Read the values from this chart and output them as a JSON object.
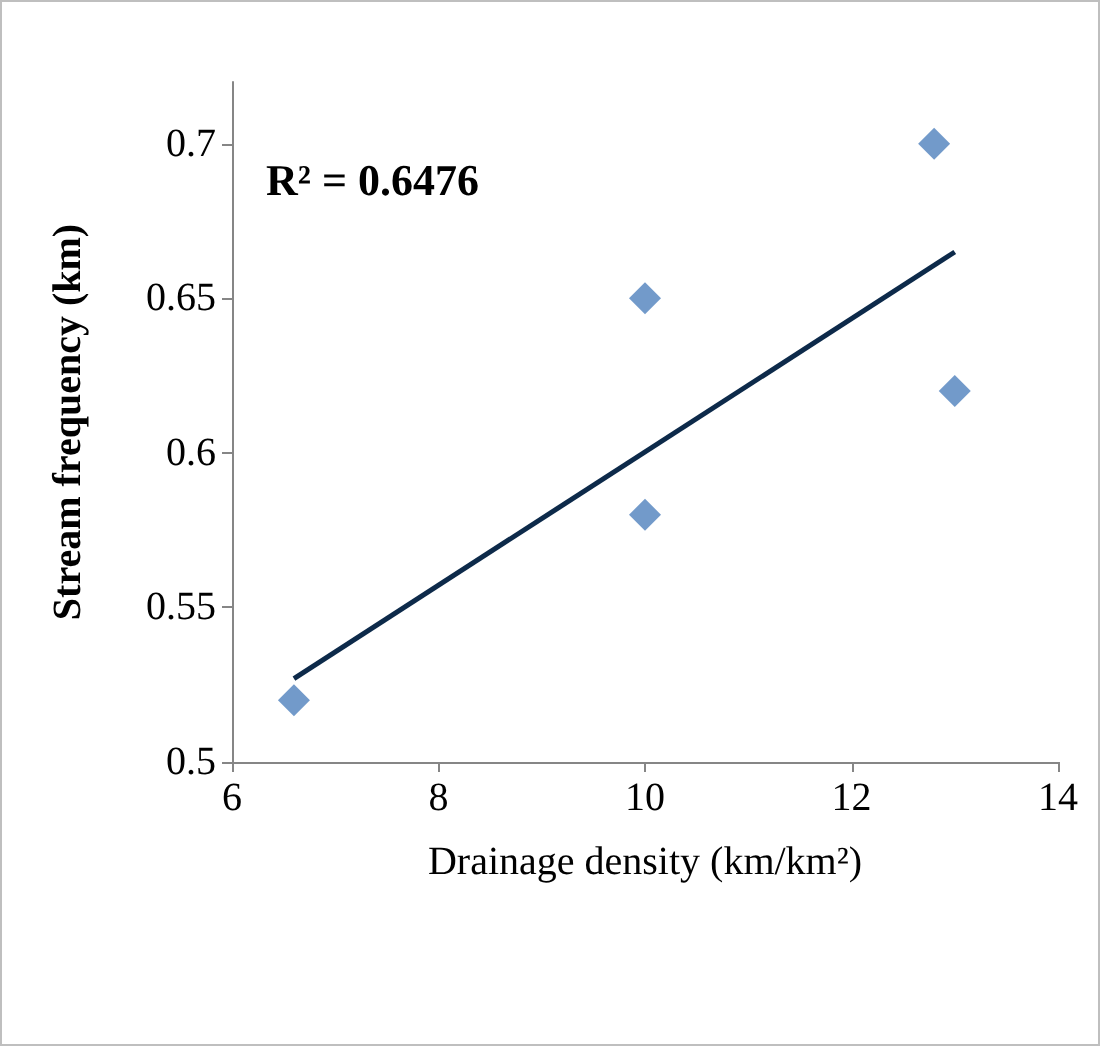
{
  "chart_data": {
    "type": "scatter",
    "xlabel": "Drainage density (km/km²)",
    "ylabel": "Stream frequency (km)",
    "xlim": [
      6,
      14
    ],
    "xticks": [
      6,
      8,
      10,
      12,
      14
    ],
    "ylim": [
      0.5,
      0.72
    ],
    "yticks": [
      0.5,
      0.55,
      0.6,
      0.65,
      0.7
    ],
    "series": [
      {
        "color": "#4f81bd",
        "marker": "diamond",
        "x": [
          6.6,
          10,
          10,
          12.8,
          13
        ],
        "values": [
          0.52,
          0.65,
          0.58,
          0.7,
          0.62
        ]
      },
      {
        "type": "line",
        "color": "#0d2a4a",
        "line_style": "solid",
        "x": [
          6.6,
          13
        ],
        "values": [
          0.527,
          0.665
        ]
      }
    ],
    "annotations": [
      "R² = 0.6476"
    ]
  }
}
